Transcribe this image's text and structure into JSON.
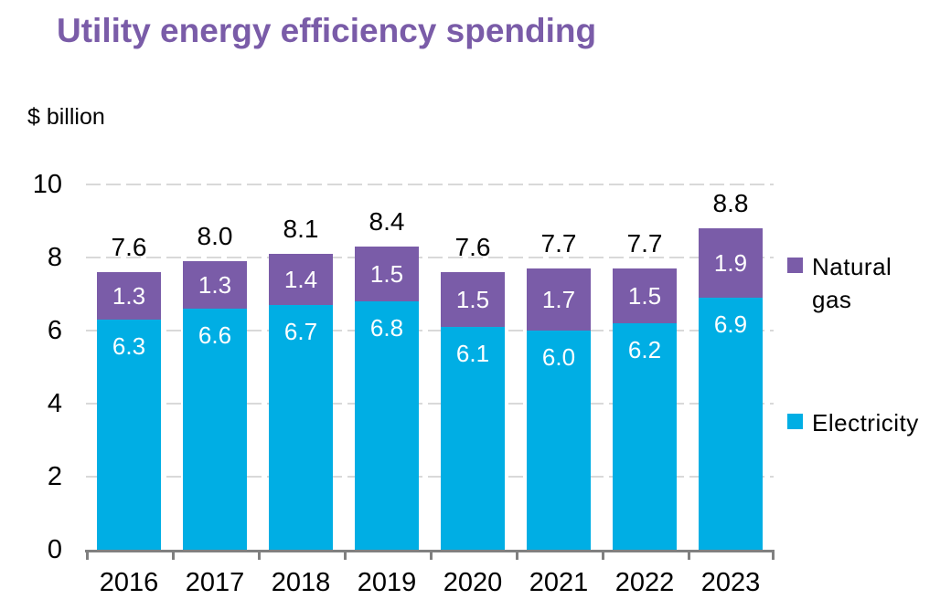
{
  "title": "Utility energy efficiency spending",
  "units_label": "$ billion",
  "colors": {
    "title_text": "#7a5ca8",
    "electricity": "#00aee4",
    "natural_gas": "#7a5ca8",
    "axis": "#808080",
    "gridline": "#d9d9d9",
    "total_label": "#000000",
    "segment_label": "#ffffff"
  },
  "legend": [
    {
      "label": "Natural gas",
      "color": "#7a5ca8"
    },
    {
      "label": "Electricity",
      "color": "#00aee4"
    }
  ],
  "chart_data": {
    "type": "bar",
    "stacked": true,
    "title": "Utility energy efficiency spending",
    "ylabel": "$ billion",
    "categories": [
      "2016",
      "2017",
      "2018",
      "2019",
      "2020",
      "2021",
      "2022",
      "2023"
    ],
    "series": [
      {
        "name": "Electricity",
        "color": "#00aee4",
        "values": [
          6.3,
          6.6,
          6.7,
          6.8,
          6.1,
          6.0,
          6.2,
          6.9
        ]
      },
      {
        "name": "Natural gas",
        "color": "#7a5ca8",
        "values": [
          1.3,
          1.3,
          1.4,
          1.5,
          1.5,
          1.7,
          1.5,
          1.9
        ]
      }
    ],
    "totals": [
      7.6,
      8.0,
      8.1,
      8.4,
      7.6,
      7.7,
      7.7,
      8.8
    ],
    "ylim": [
      0,
      10
    ],
    "yticks": [
      0,
      2,
      4,
      6,
      8,
      10
    ],
    "grid": "dashed-horizontal",
    "legend_position": "right",
    "value_labels": "white inside segments; black totals above bars"
  }
}
